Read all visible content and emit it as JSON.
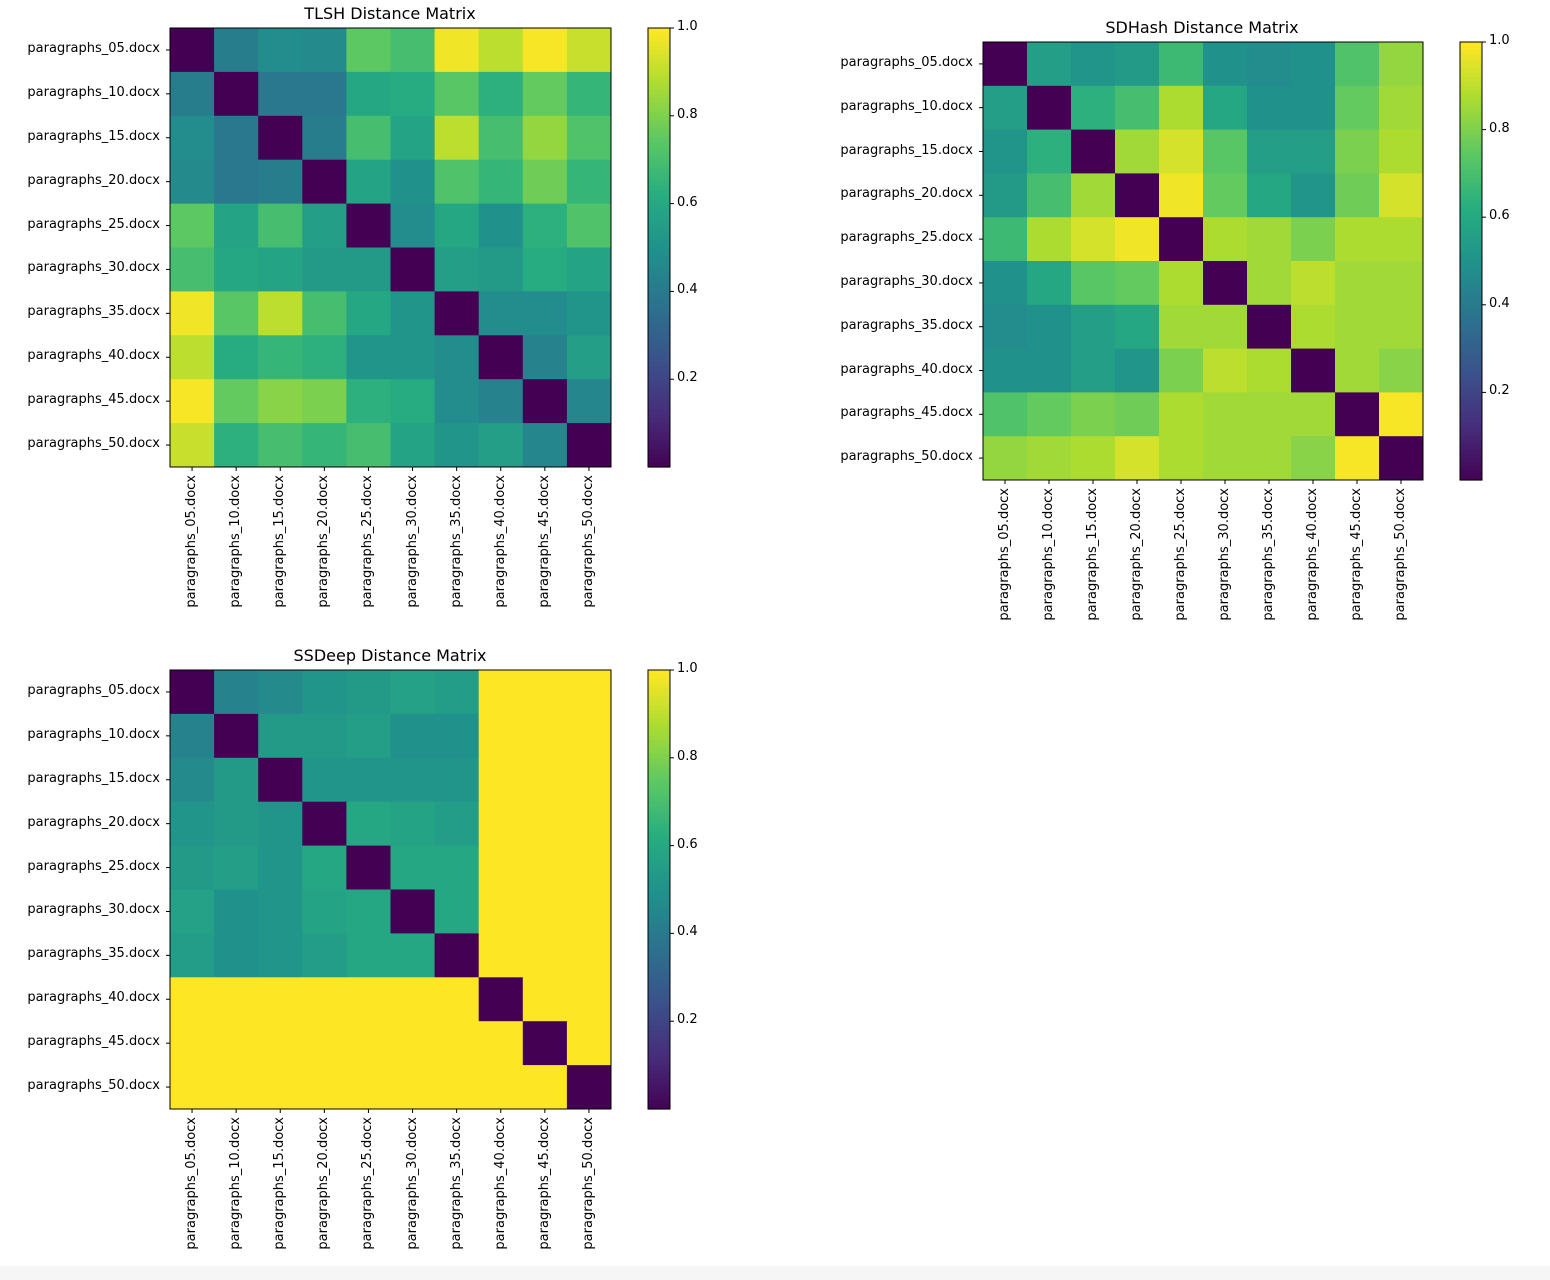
{
  "chart_data": [
    {
      "type": "heatmap",
      "title": "TLSH Distance Matrix",
      "rows": [
        "paragraphs_05.docx",
        "paragraphs_10.docx",
        "paragraphs_15.docx",
        "paragraphs_20.docx",
        "paragraphs_25.docx",
        "paragraphs_30.docx",
        "paragraphs_35.docx",
        "paragraphs_40.docx",
        "paragraphs_45.docx",
        "paragraphs_50.docx"
      ],
      "cols": [
        "paragraphs_05.docx",
        "paragraphs_10.docx",
        "paragraphs_15.docx",
        "paragraphs_20.docx",
        "paragraphs_25.docx",
        "paragraphs_30.docx",
        "paragraphs_35.docx",
        "paragraphs_40.docx",
        "paragraphs_45.docx",
        "paragraphs_50.docx"
      ],
      "values": [
        [
          0.0,
          0.42,
          0.48,
          0.47,
          0.75,
          0.7,
          0.98,
          0.9,
          0.99,
          0.92
        ],
        [
          0.42,
          0.0,
          0.4,
          0.4,
          0.6,
          0.62,
          0.74,
          0.64,
          0.76,
          0.66
        ],
        [
          0.48,
          0.4,
          0.0,
          0.42,
          0.7,
          0.58,
          0.9,
          0.7,
          0.84,
          0.72
        ],
        [
          0.47,
          0.4,
          0.42,
          0.0,
          0.58,
          0.5,
          0.72,
          0.66,
          0.78,
          0.66
        ],
        [
          0.75,
          0.58,
          0.7,
          0.56,
          0.0,
          0.48,
          0.6,
          0.5,
          0.64,
          0.72
        ],
        [
          0.7,
          0.6,
          0.58,
          0.54,
          0.54,
          0.0,
          0.56,
          0.54,
          0.62,
          0.58
        ],
        [
          0.98,
          0.74,
          0.9,
          0.7,
          0.6,
          0.52,
          0.0,
          0.48,
          0.48,
          0.52
        ],
        [
          0.9,
          0.62,
          0.66,
          0.64,
          0.52,
          0.52,
          0.48,
          0.0,
          0.44,
          0.56
        ],
        [
          0.99,
          0.76,
          0.82,
          0.8,
          0.64,
          0.62,
          0.48,
          0.44,
          0.0,
          0.46
        ],
        [
          0.92,
          0.64,
          0.7,
          0.66,
          0.7,
          0.58,
          0.52,
          0.56,
          0.46,
          0.0
        ]
      ],
      "colorbar": {
        "range": [
          0.0,
          1.0
        ],
        "ticks": [
          "0.2",
          "0.4",
          "0.6",
          "0.8",
          "1.0"
        ],
        "colormap": "viridis"
      }
    },
    {
      "type": "heatmap",
      "title": "SDHash Distance Matrix",
      "rows": [
        "paragraphs_05.docx",
        "paragraphs_10.docx",
        "paragraphs_15.docx",
        "paragraphs_20.docx",
        "paragraphs_25.docx",
        "paragraphs_30.docx",
        "paragraphs_35.docx",
        "paragraphs_40.docx",
        "paragraphs_45.docx",
        "paragraphs_50.docx"
      ],
      "cols": [
        "paragraphs_05.docx",
        "paragraphs_10.docx",
        "paragraphs_15.docx",
        "paragraphs_20.docx",
        "paragraphs_25.docx",
        "paragraphs_30.docx",
        "paragraphs_35.docx",
        "paragraphs_40.docx",
        "paragraphs_45.docx",
        "paragraphs_50.docx"
      ],
      "values": [
        [
          0.0,
          0.56,
          0.52,
          0.54,
          0.68,
          0.5,
          0.48,
          0.5,
          0.72,
          0.84
        ],
        [
          0.56,
          0.0,
          0.64,
          0.7,
          0.88,
          0.6,
          0.5,
          0.5,
          0.76,
          0.86
        ],
        [
          0.52,
          0.64,
          0.0,
          0.86,
          0.94,
          0.74,
          0.56,
          0.56,
          0.8,
          0.88
        ],
        [
          0.54,
          0.7,
          0.86,
          0.0,
          0.98,
          0.76,
          0.6,
          0.52,
          0.78,
          0.94
        ],
        [
          0.68,
          0.88,
          0.94,
          0.98,
          0.0,
          0.88,
          0.86,
          0.8,
          0.88,
          0.88
        ],
        [
          0.5,
          0.6,
          0.74,
          0.76,
          0.88,
          0.0,
          0.86,
          0.9,
          0.86,
          0.86
        ],
        [
          0.48,
          0.5,
          0.56,
          0.6,
          0.86,
          0.86,
          0.0,
          0.88,
          0.86,
          0.86
        ],
        [
          0.5,
          0.5,
          0.56,
          0.52,
          0.8,
          0.9,
          0.88,
          0.0,
          0.86,
          0.82
        ],
        [
          0.72,
          0.76,
          0.8,
          0.78,
          0.88,
          0.86,
          0.86,
          0.86,
          0.0,
          0.99
        ],
        [
          0.84,
          0.86,
          0.88,
          0.94,
          0.88,
          0.86,
          0.86,
          0.82,
          0.99,
          0.0
        ]
      ],
      "colorbar": {
        "range": [
          0.0,
          1.0
        ],
        "ticks": [
          "0.2",
          "0.4",
          "0.6",
          "0.8",
          "1.0"
        ],
        "colormap": "viridis"
      }
    },
    {
      "type": "heatmap",
      "title": "SSDeep Distance Matrix",
      "rows": [
        "paragraphs_05.docx",
        "paragraphs_10.docx",
        "paragraphs_15.docx",
        "paragraphs_20.docx",
        "paragraphs_25.docx",
        "paragraphs_30.docx",
        "paragraphs_35.docx",
        "paragraphs_40.docx",
        "paragraphs_45.docx",
        "paragraphs_50.docx"
      ],
      "cols": [
        "paragraphs_05.docx",
        "paragraphs_10.docx",
        "paragraphs_15.docx",
        "paragraphs_20.docx",
        "paragraphs_25.docx",
        "paragraphs_30.docx",
        "paragraphs_35.docx",
        "paragraphs_40.docx",
        "paragraphs_45.docx",
        "paragraphs_50.docx"
      ],
      "values": [
        [
          0.0,
          0.44,
          0.47,
          0.52,
          0.54,
          0.57,
          0.55,
          1.0,
          1.0,
          1.0
        ],
        [
          0.44,
          0.0,
          0.54,
          0.54,
          0.56,
          0.5,
          0.5,
          1.0,
          1.0,
          1.0
        ],
        [
          0.47,
          0.54,
          0.0,
          0.52,
          0.52,
          0.52,
          0.52,
          1.0,
          1.0,
          1.0
        ],
        [
          0.52,
          0.54,
          0.52,
          0.0,
          0.6,
          0.58,
          0.55,
          1.0,
          1.0,
          1.0
        ],
        [
          0.54,
          0.56,
          0.52,
          0.6,
          0.0,
          0.6,
          0.6,
          1.0,
          1.0,
          1.0
        ],
        [
          0.57,
          0.5,
          0.52,
          0.58,
          0.6,
          0.0,
          0.6,
          1.0,
          1.0,
          1.0
        ],
        [
          0.55,
          0.5,
          0.52,
          0.55,
          0.6,
          0.6,
          0.0,
          1.0,
          1.0,
          1.0
        ],
        [
          1.0,
          1.0,
          1.0,
          1.0,
          1.0,
          1.0,
          1.0,
          0.0,
          1.0,
          1.0
        ],
        [
          1.0,
          1.0,
          1.0,
          1.0,
          1.0,
          1.0,
          1.0,
          1.0,
          0.0,
          1.0
        ],
        [
          1.0,
          1.0,
          1.0,
          1.0,
          1.0,
          1.0,
          1.0,
          1.0,
          1.0,
          0.0
        ]
      ],
      "colorbar": {
        "range": [
          0.0,
          1.0
        ],
        "ticks": [
          "0.2",
          "0.4",
          "0.6",
          "0.8",
          "1.0"
        ],
        "colormap": "viridis"
      }
    }
  ]
}
